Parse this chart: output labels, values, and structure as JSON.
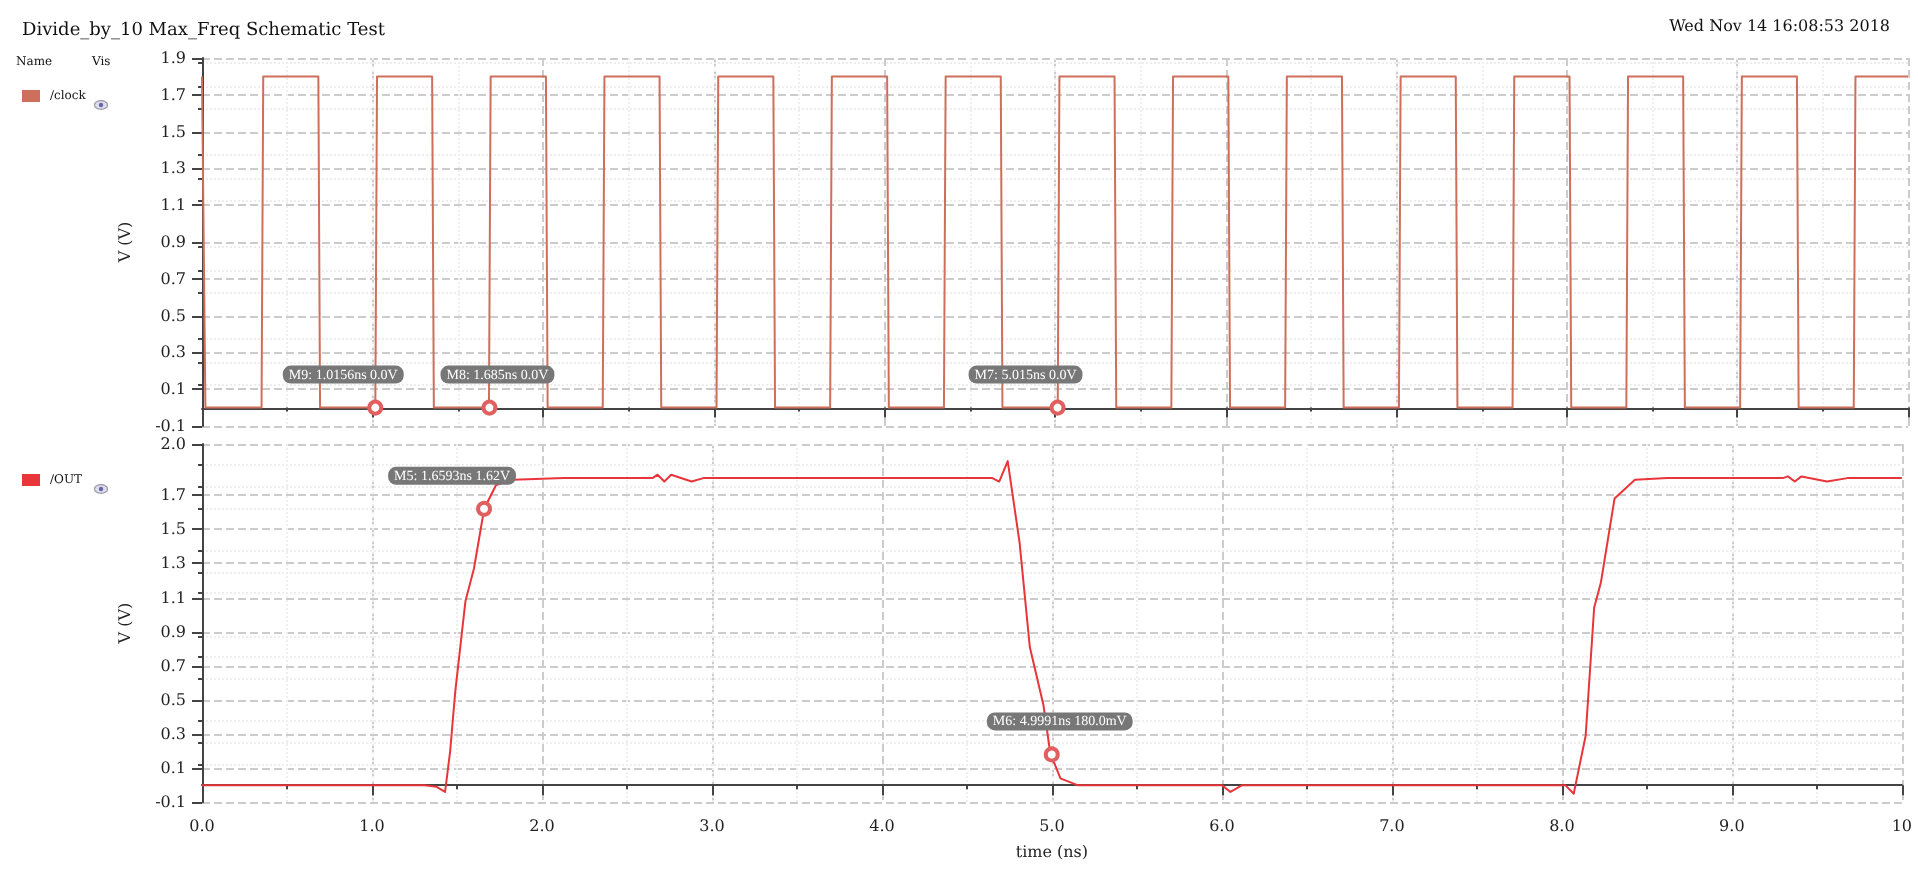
{
  "chart_data": [
    {
      "type": "line",
      "title": "Divide_by_10 Max_Freq Schematic Test",
      "ylabel": "V (V)",
      "legend": "left",
      "grid": true,
      "marker": "none",
      "tick_labels": "y",
      "annotations": [
        "Wed Nov 14 16:08:53 2018",
        "Name",
        "Vis",
        {
          "text": "M9: 1.0156ns 0.0V",
          "x": 1.0156,
          "y": 0
        },
        {
          "text": "M8: 1.685ns 0.0V",
          "x": 1.685,
          "y": 0
        },
        {
          "text": "M7: 5.015ns 0.0V",
          "x": 5.015,
          "y": 0
        }
      ],
      "xlim": [
        0,
        10
      ],
      "xticks": [
        0,
        1,
        2,
        3,
        4,
        5,
        6,
        7,
        8,
        9,
        10
      ],
      "ylim": [
        -0.1,
        1.9
      ],
      "yticks": [
        -0.1,
        0.1,
        0.3,
        0.5,
        0.7,
        0.9,
        1.1,
        1.3,
        1.5,
        1.7,
        1.9
      ],
      "series": [
        {
          "name": "/clock",
          "color": "#cd6f5a",
          "x": [
            0,
            0.02,
            0.349,
            0.359,
            0.682,
            0.692,
            1.016,
            1.026,
            1.349,
            1.359,
            1.682,
            1.692,
            2.016,
            2.026,
            2.349,
            2.359,
            2.682,
            2.692,
            3.016,
            3.026,
            3.349,
            3.359,
            3.682,
            3.692,
            4.016,
            4.026,
            4.349,
            4.359,
            4.682,
            4.692,
            5.016,
            5.026,
            5.349,
            5.359,
            5.682,
            5.692,
            6.016,
            6.026,
            6.349,
            6.359,
            6.682,
            6.692,
            7.016,
            7.026,
            7.349,
            7.359,
            7.682,
            7.692,
            8.016,
            8.026,
            8.349,
            8.359,
            8.682,
            8.692,
            9.016,
            9.026,
            9.349,
            9.359,
            9.682,
            9.692,
            10
          ],
          "values": [
            1.8,
            0,
            0,
            1.8,
            1.8,
            0,
            0,
            1.8,
            1.8,
            0,
            0,
            1.8,
            1.8,
            0,
            0,
            1.8,
            1.8,
            0,
            0,
            1.8,
            1.8,
            0,
            0,
            1.8,
            1.8,
            0,
            0,
            1.8,
            1.8,
            0,
            0,
            1.8,
            1.8,
            0,
            0,
            1.8,
            1.8,
            0,
            0,
            1.8,
            1.8,
            0,
            0,
            1.8,
            1.8,
            0,
            0,
            1.8,
            1.8,
            0,
            0,
            1.8,
            1.8,
            0,
            0,
            1.8,
            1.8,
            0,
            0,
            1.8,
            1.8
          ]
        }
      ]
    },
    {
      "type": "line",
      "xlabel": "time (ns)",
      "ylabel": "V (V)",
      "legend": "left",
      "grid": true,
      "marker": "none",
      "annotations": [
        {
          "text": "M5: 1.6593ns 1.62V",
          "x": 1.6593,
          "y": 1.62
        },
        {
          "text": "M6: 4.9991ns 180.0mV",
          "x": 4.9991,
          "y": 0.18
        }
      ],
      "xlim": [
        0,
        10
      ],
      "xticks": [
        {
          "value": 0,
          "label": "0.0"
        },
        {
          "value": 1,
          "label": "1.0"
        },
        {
          "value": 2,
          "label": "2.0"
        },
        {
          "value": 3,
          "label": "3.0"
        },
        {
          "value": 4,
          "label": "4.0"
        },
        {
          "value": 5,
          "label": "5.0"
        },
        {
          "value": 6,
          "label": "6.0"
        },
        {
          "value": 7,
          "label": "7.0"
        },
        {
          "value": 8,
          "label": "8.0"
        },
        {
          "value": 9,
          "label": "9.0"
        },
        10
      ],
      "ylim": [
        -0.1,
        2.0
      ],
      "yticks": [
        -0.1,
        0.1,
        0.3,
        0.5,
        0.7,
        0.9,
        1.1,
        1.3,
        1.5,
        1.7,
        {
          "value": 2.0,
          "label": "2.0"
        }
      ],
      "series": [
        {
          "name": "/OUT",
          "color": "#e8353a",
          "x": [
            0,
            1.31,
            1.38,
            1.43,
            1.46,
            1.49,
            1.55,
            1.6,
            1.66,
            1.73,
            1.83,
            2.13,
            2.65,
            2.68,
            2.72,
            2.76,
            2.88,
            2.95,
            4.65,
            4.69,
            4.74,
            4.81,
            4.87,
            4.95,
            4.99,
            5.05,
            5.15,
            6.0,
            6.05,
            6.12,
            8.02,
            8.07,
            8.14,
            8.19,
            8.23,
            8.31,
            8.43,
            8.62,
            9.3,
            9.33,
            9.37,
            9.41,
            9.56,
            9.68,
            10
          ],
          "values": [
            0,
            0,
            -0.01,
            -0.04,
            0.2,
            0.55,
            1.08,
            1.27,
            1.62,
            1.76,
            1.79,
            1.8,
            1.8,
            1.82,
            1.78,
            1.82,
            1.78,
            1.8,
            1.8,
            1.78,
            1.9,
            1.42,
            0.81,
            0.47,
            0.19,
            0.04,
            0,
            0,
            -0.04,
            0,
            0,
            -0.05,
            0.29,
            1.04,
            1.19,
            1.68,
            1.79,
            1.8,
            1.8,
            1.81,
            1.78,
            1.81,
            1.78,
            1.8,
            1.8
          ]
        }
      ]
    }
  ]
}
